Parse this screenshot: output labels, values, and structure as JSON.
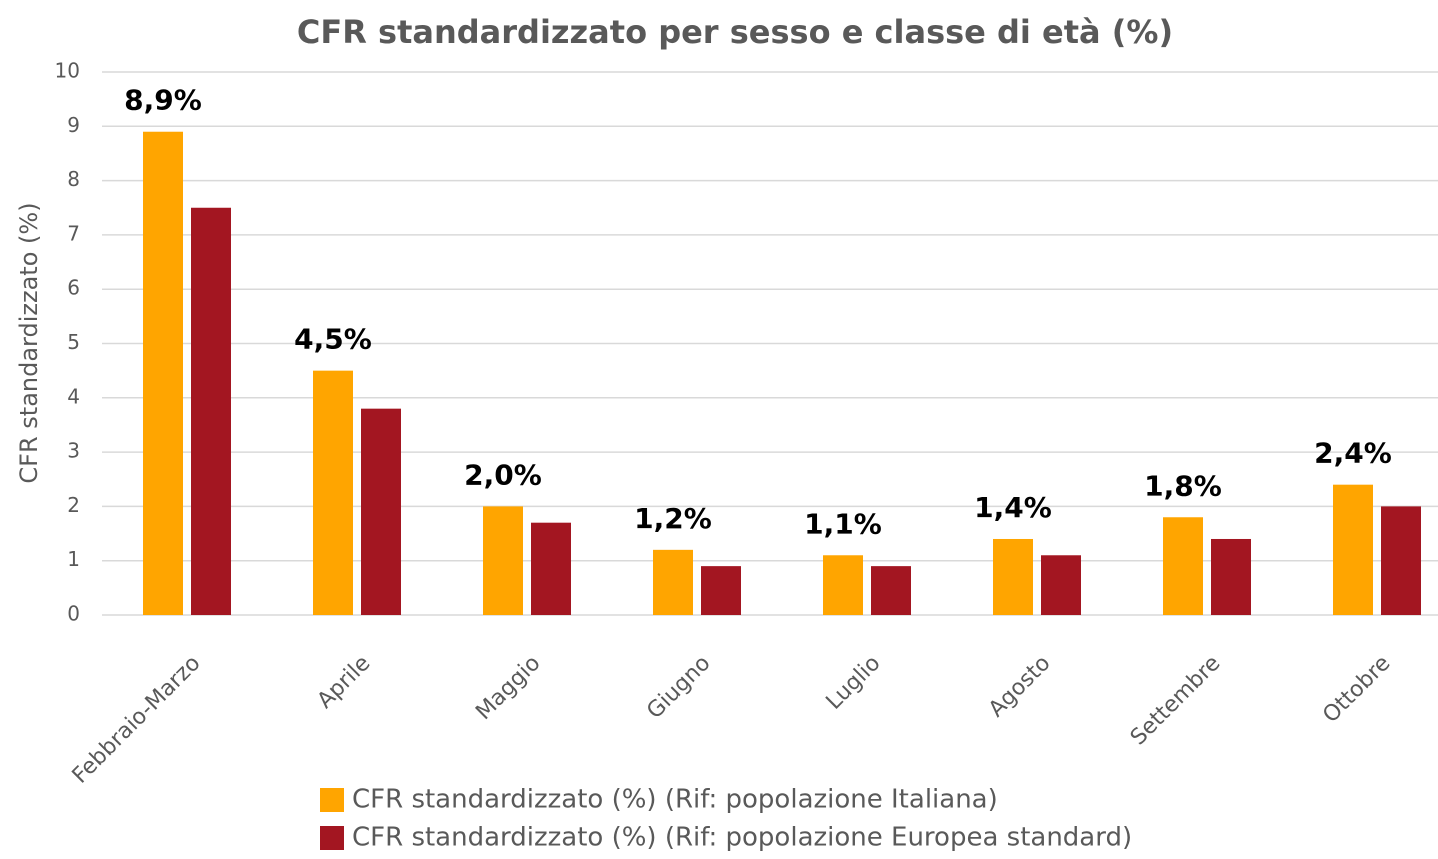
{
  "chart_data": {
    "type": "bar",
    "title": "CFR standardizzato per sesso e classe di età (%)",
    "y_label": "CFR standardizzato (%)",
    "categories": [
      "Febbraio-Marzo",
      "Aprile",
      "Maggio",
      "Giugno",
      "Luglio",
      "Agosto",
      "Settembre",
      "Ottobre"
    ],
    "series": [
      {
        "name": "CFR standardizzato (%) (Rif: popolazione Italiana)",
        "color": "#ffa500",
        "values": [
          8.9,
          4.5,
          2.0,
          1.2,
          1.1,
          1.4,
          1.8,
          2.4
        ],
        "value_labels": [
          "8,9%",
          "4,5%",
          "2,0%",
          "1,2%",
          "1,1%",
          "1,4%",
          "1,8%",
          "2,4%"
        ]
      },
      {
        "name": "CFR standardizzato (%) (Rif: popolazione Europea standard)",
        "color": "#a31621",
        "values": [
          7.5,
          3.8,
          1.7,
          0.9,
          0.9,
          1.1,
          1.4,
          2.0
        ]
      }
    ],
    "ylim": [
      0,
      10
    ],
    "yticks": [
      0,
      1,
      2,
      3,
      4,
      5,
      6,
      7,
      8,
      9,
      10
    ],
    "grid": true,
    "legend": "bottom"
  }
}
